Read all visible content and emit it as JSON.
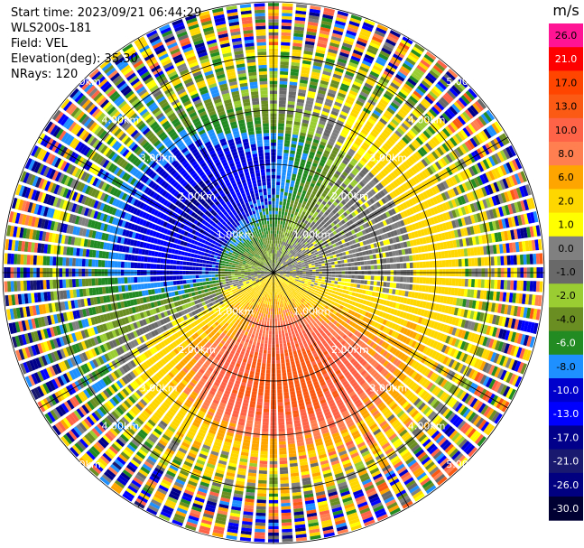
{
  "header": {
    "start_time": "Start time: 2023/09/21 06:44:29",
    "instrument": "WLS200s-181",
    "field": "Field: VEL",
    "elevation": "Elevation(deg): 35.30",
    "nrays": "NRays: 120"
  },
  "chart_data": {
    "type": "ppi-polar-heatmap",
    "field": "VEL",
    "units": "m/s",
    "n_rays": 120,
    "elevation_deg": 35.3,
    "max_range_km": 5.0,
    "range_rings_km": [
      1,
      2,
      3,
      4,
      5
    ],
    "range_ring_labels": [
      "1.00km",
      "2.00km",
      "3.00km",
      "4.00km",
      "5.00km"
    ],
    "colorbar": {
      "title": "m/s",
      "ticks": [
        "26.0",
        "21.0",
        "17.0",
        "13.0",
        "10.0",
        "8.0",
        "6.0",
        "2.0",
        "1.0",
        "0.0",
        "-1.0",
        "-2.0",
        "-4.0",
        "-6.0",
        "-8.0",
        "-10.0",
        "-13.0",
        "-17.0",
        "-21.0",
        "-26.0",
        "-30.0"
      ],
      "colors": [
        "#ff1493",
        "#ff0000",
        "#ff4500",
        "#fa5a14",
        "#ff6347",
        "#ff7f50",
        "#ffa500",
        "#ffd700",
        "#ffff00",
        "#808080",
        "#696969",
        "#9acd32",
        "#6b8e23",
        "#228b22",
        "#1e90ff",
        "#0000cd",
        "#0000ff",
        "#00008b",
        "#191970",
        "#000080",
        "#000033"
      ]
    },
    "regions": [
      {
        "description": "receding (negative, blue) core",
        "azimuth_center_deg": 320,
        "range_km": [
          0.5,
          3.2
        ],
        "value": -9
      },
      {
        "description": "approaching (positive, red/orange) core",
        "azimuth_center_deg": 180,
        "range_km": [
          0.3,
          3.5
        ],
        "value": 12
      }
    ]
  }
}
